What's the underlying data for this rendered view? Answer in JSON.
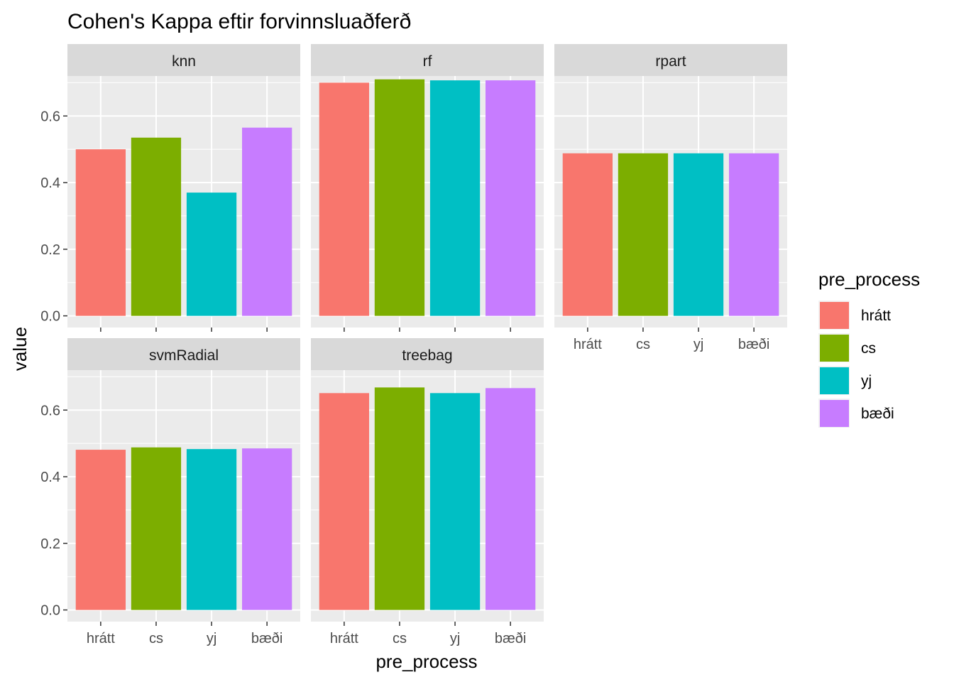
{
  "chart_data": {
    "type": "bar",
    "title": "Cohen's Kappa eftir forvinnsluaðferð",
    "xlabel": "pre_process",
    "ylabel": "value",
    "categories": [
      "hrátt",
      "cs",
      "yj",
      "bæði"
    ],
    "ylim": [
      0,
      0.7
    ],
    "yticks": [
      "0.0",
      "0.2",
      "0.4",
      "0.6"
    ],
    "grid": true,
    "legend": {
      "title": "pre_process",
      "position": "right",
      "entries": [
        "hrátt",
        "cs",
        "yj",
        "bæði"
      ]
    },
    "colors": [
      "#F8766D",
      "#7CAE00",
      "#00BFC4",
      "#C77CFF"
    ],
    "facets": [
      {
        "name": "knn",
        "values": [
          0.5,
          0.535,
          0.37,
          0.565
        ]
      },
      {
        "name": "rf",
        "values": [
          0.7,
          0.71,
          0.707,
          0.707
        ]
      },
      {
        "name": "rpart",
        "values": [
          0.488,
          0.488,
          0.488,
          0.488
        ]
      },
      {
        "name": "svmRadial",
        "values": [
          0.481,
          0.488,
          0.483,
          0.485
        ]
      },
      {
        "name": "treebag",
        "values": [
          0.651,
          0.668,
          0.651,
          0.666
        ]
      }
    ]
  }
}
